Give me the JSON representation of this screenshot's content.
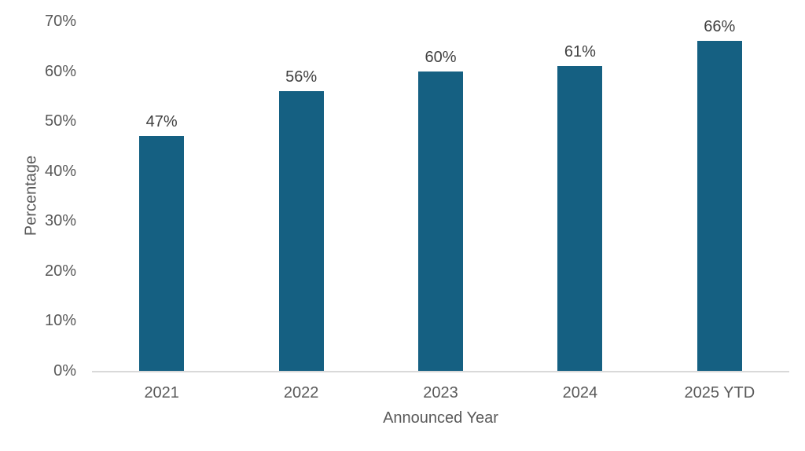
{
  "chart_data": {
    "type": "bar",
    "title": "",
    "categories": [
      "2021",
      "2022",
      "2023",
      "2024",
      "2025 YTD"
    ],
    "values": [
      47,
      56,
      60,
      61,
      66
    ],
    "data_labels": [
      "47%",
      "56%",
      "60%",
      "61%",
      "66%"
    ],
    "xlabel": "Announced Year",
    "ylabel": "Percentage",
    "ylim": [
      0,
      70
    ],
    "y_tick_labels": [
      "0%",
      "10%",
      "20%",
      "30%",
      "40%",
      "50%",
      "60%",
      "70%"
    ],
    "grid": false,
    "legend_position": "none",
    "colors": {
      "bar": "#156082",
      "axis_line": "#D9D9D9",
      "axis_text": "#595959",
      "data_label_text": "#404040",
      "background": "#FFFFFF"
    }
  }
}
